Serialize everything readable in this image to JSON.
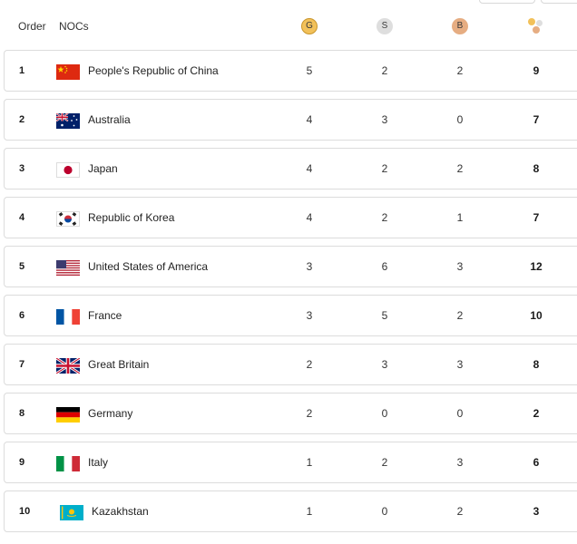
{
  "header": {
    "order_label": "Order",
    "nocs_label": "NOCs",
    "gold_label": "G",
    "silver_label": "S",
    "bronze_label": "B",
    "total_icon": "medals-icon"
  },
  "colors": {
    "gold": "#f2c15a",
    "silver": "#dedede",
    "bronze": "#e6ad82",
    "row_border": "#dcdcdc"
  },
  "rows": [
    {
      "order": "1",
      "noc": "People's Republic of China",
      "flag": "china-flag-icon",
      "gold": "5",
      "silver": "2",
      "bronze": "2",
      "total": "9"
    },
    {
      "order": "2",
      "noc": "Australia",
      "flag": "australia-flag-icon",
      "gold": "4",
      "silver": "3",
      "bronze": "0",
      "total": "7"
    },
    {
      "order": "3",
      "noc": "Japan",
      "flag": "japan-flag-icon",
      "gold": "4",
      "silver": "2",
      "bronze": "2",
      "total": "8"
    },
    {
      "order": "4",
      "noc": "Republic of Korea",
      "flag": "korea-flag-icon",
      "gold": "4",
      "silver": "2",
      "bronze": "1",
      "total": "7"
    },
    {
      "order": "5",
      "noc": "United States of America",
      "flag": "usa-flag-icon",
      "gold": "3",
      "silver": "6",
      "bronze": "3",
      "total": "12"
    },
    {
      "order": "6",
      "noc": "France",
      "flag": "france-flag-icon",
      "gold": "3",
      "silver": "5",
      "bronze": "2",
      "total": "10"
    },
    {
      "order": "7",
      "noc": "Great Britain",
      "flag": "great-britain-flag-icon",
      "gold": "2",
      "silver": "3",
      "bronze": "3",
      "total": "8"
    },
    {
      "order": "8",
      "noc": "Germany",
      "flag": "germany-flag-icon",
      "gold": "2",
      "silver": "0",
      "bronze": "0",
      "total": "2"
    },
    {
      "order": "9",
      "noc": "Italy",
      "flag": "italy-flag-icon",
      "gold": "1",
      "silver": "2",
      "bronze": "3",
      "total": "6"
    },
    {
      "order": "10",
      "noc": "Kazakhstan",
      "flag": "kazakhstan-flag-icon",
      "gold": "1",
      "silver": "0",
      "bronze": "2",
      "total": "3"
    }
  ]
}
